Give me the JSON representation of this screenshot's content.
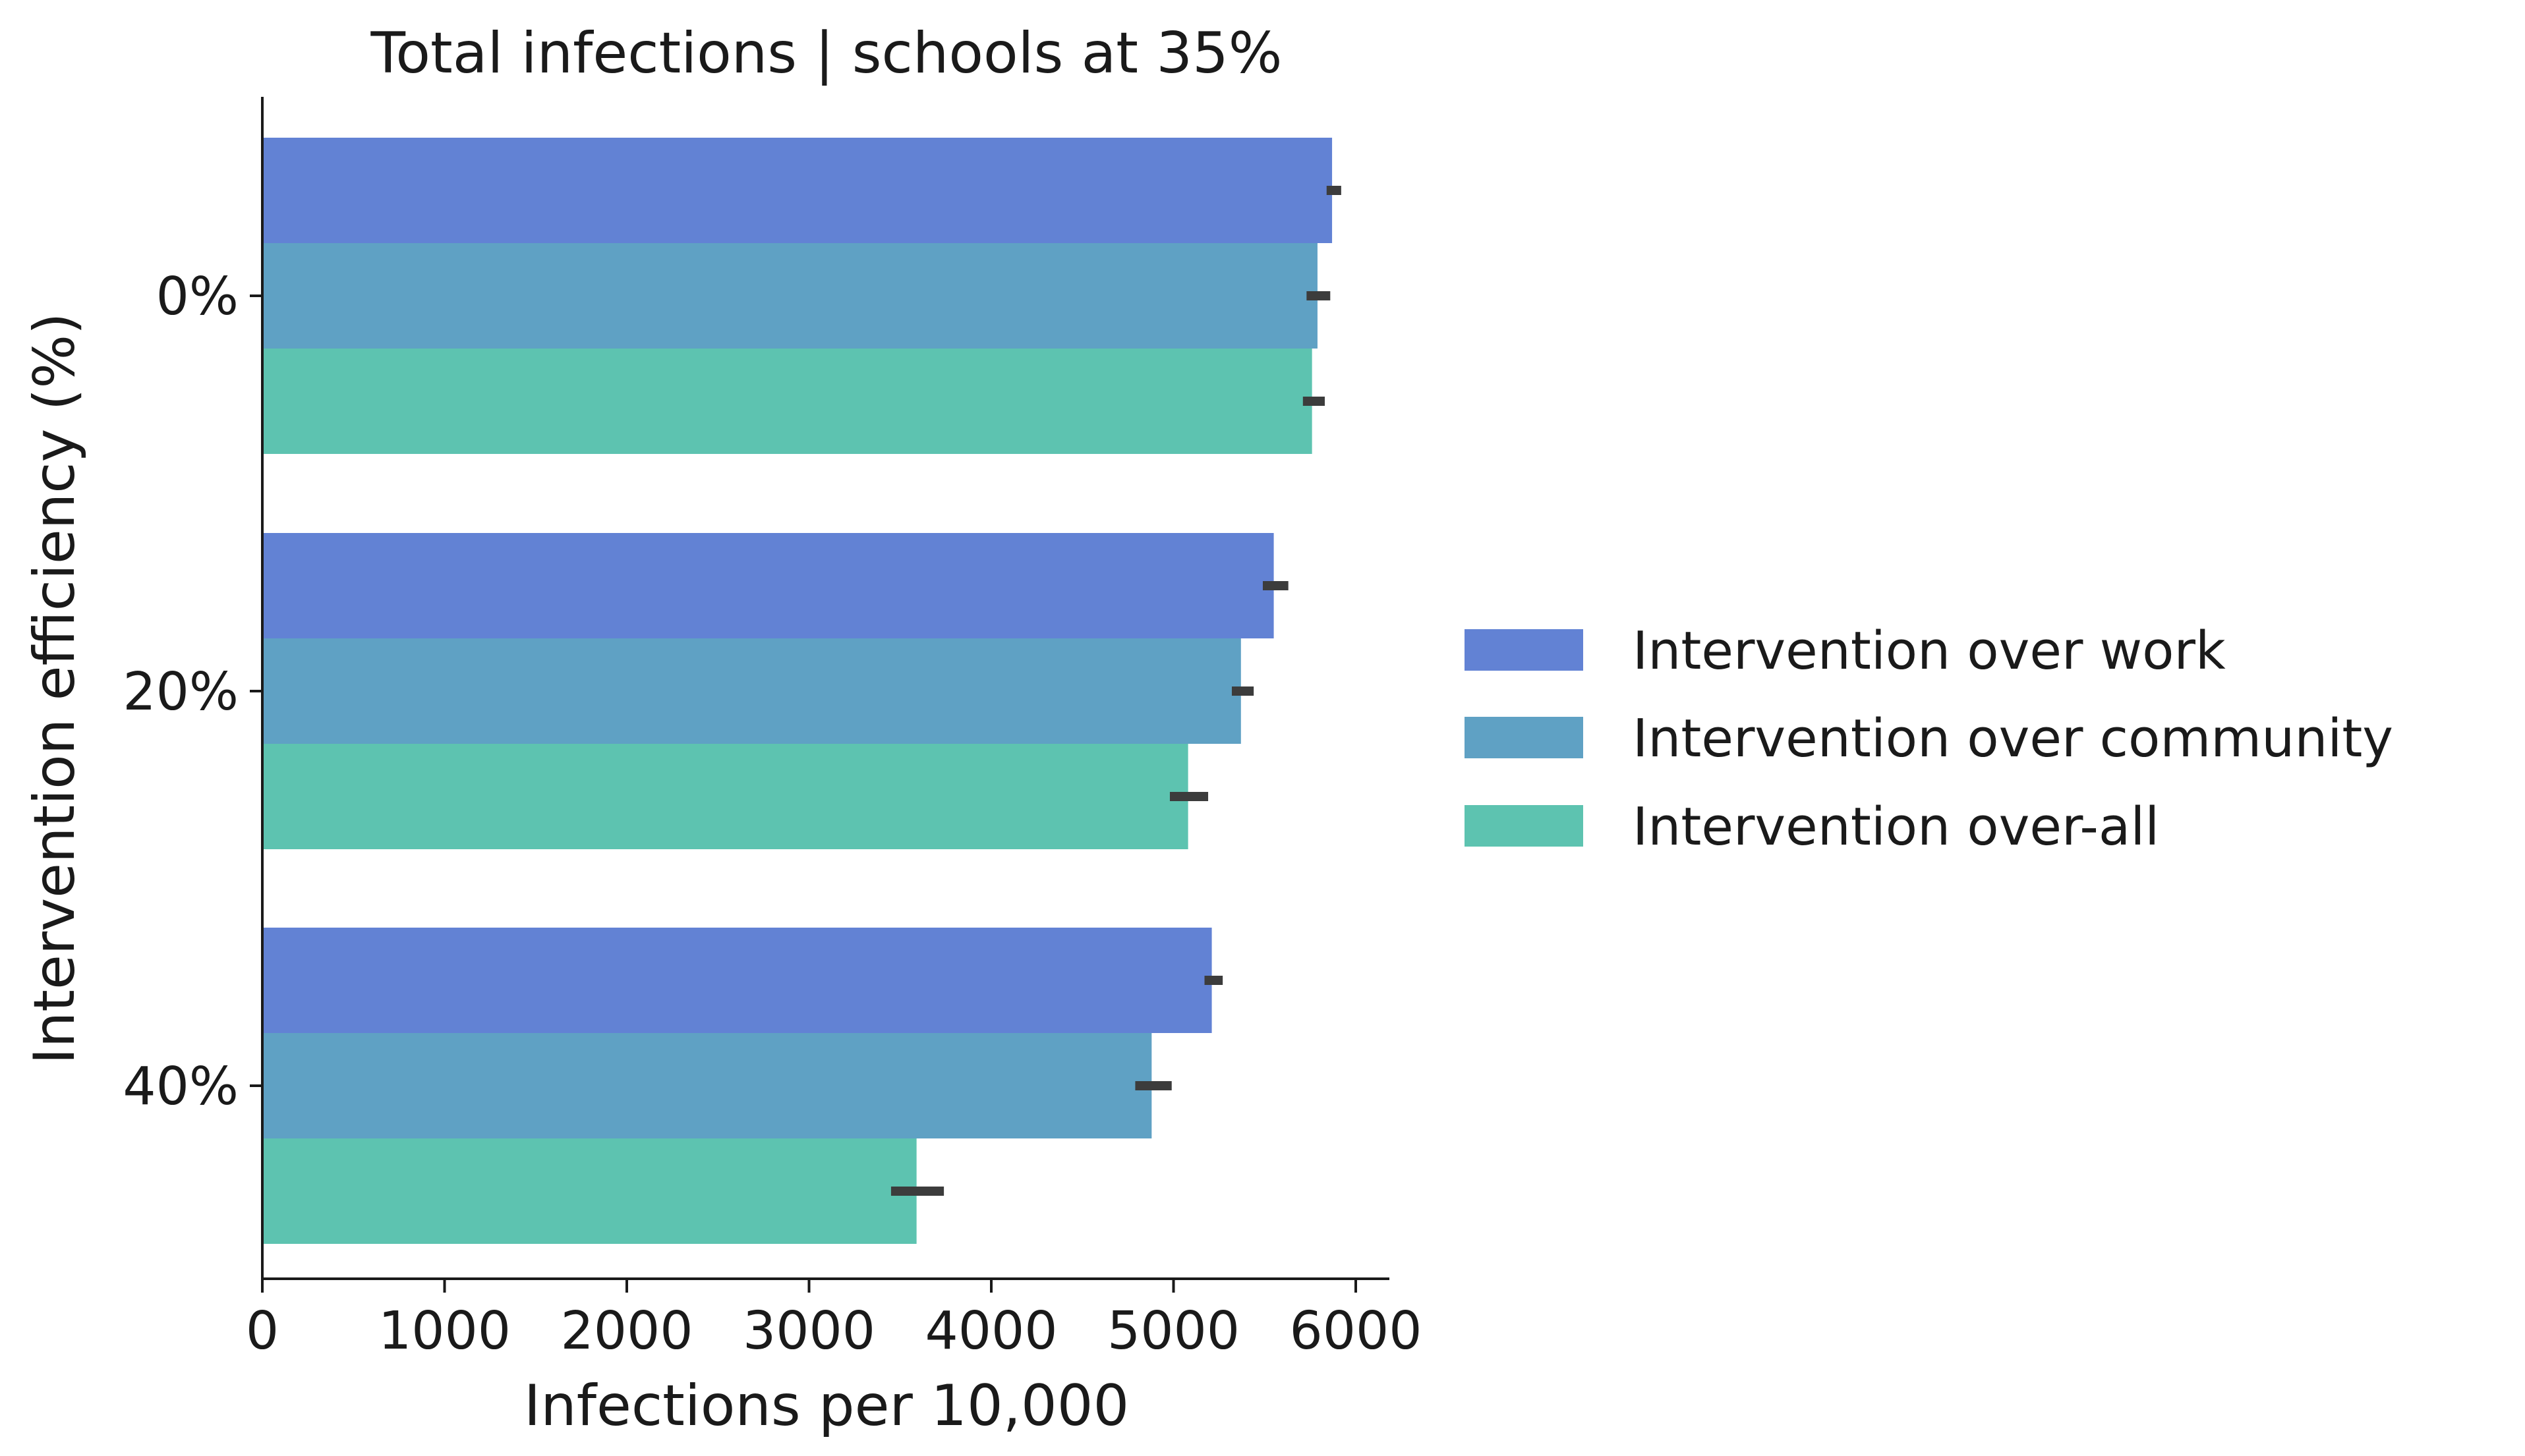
{
  "chart_data": {
    "type": "bar",
    "orientation": "horizontal",
    "title": "Total infections | schools at 35%",
    "xlabel": "Infections per 10,000",
    "ylabel": "Intervention efficiency (%)",
    "xlim": [
      0,
      6200
    ],
    "xticks": [
      "0",
      "1000",
      "2000",
      "3000",
      "4000",
      "5000",
      "6000"
    ],
    "categories": [
      "0%",
      "20%",
      "40%"
    ],
    "series": [
      {
        "name": "Intervention over work",
        "color": "#6282d4",
        "values": [
          5870,
          5550,
          5210
        ],
        "ci": [
          [
            5840,
            5920
          ],
          [
            5490,
            5630
          ],
          [
            5170,
            5270
          ]
        ]
      },
      {
        "name": "Intervention over community",
        "color": "#5fa1c4",
        "values": [
          5790,
          5370,
          4880
        ],
        "ci": [
          [
            5730,
            5860
          ],
          [
            5320,
            5440
          ],
          [
            4790,
            4990
          ]
        ]
      },
      {
        "name": "Intervention over-all",
        "color": "#5dc3b0",
        "values": [
          5760,
          5080,
          3590
        ],
        "ci": [
          [
            5710,
            5830
          ],
          [
            4980,
            5190
          ],
          [
            3450,
            3740
          ]
        ]
      }
    ],
    "legend_position": "right",
    "grid": false,
    "error_bar_color": "#3c3c3c"
  }
}
